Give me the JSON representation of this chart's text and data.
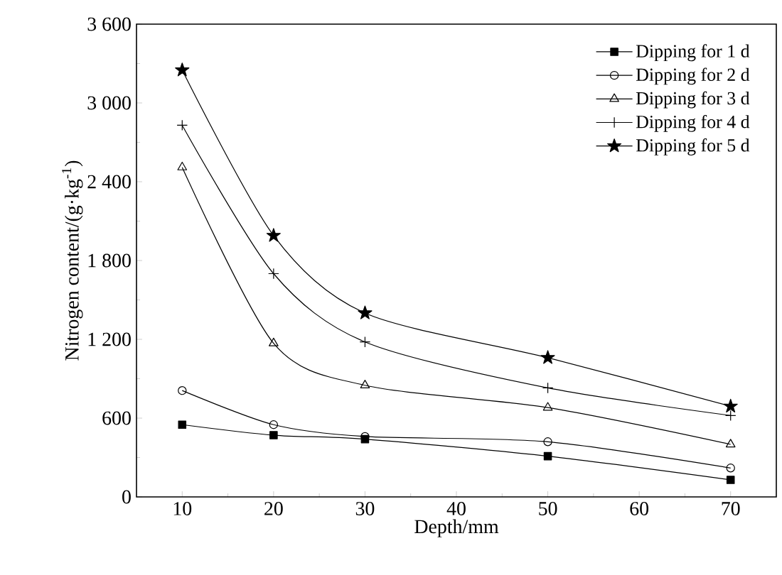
{
  "chart_data": {
    "type": "line",
    "xlabel": "Depth/mm",
    "ylabel": "Nitrogen content/(g·kg$^{-1}$)",
    "x": [
      10,
      20,
      30,
      50,
      70
    ],
    "series": [
      {
        "name": "Dipping for 1 d",
        "color": "#000000",
        "marker": "square",
        "values": [
          550,
          470,
          440,
          310,
          130
        ]
      },
      {
        "name": "Dipping for 2 d",
        "color": "#000000",
        "marker": "circle",
        "values": [
          810,
          550,
          460,
          420,
          220
        ]
      },
      {
        "name": "Dipping for 3 d",
        "color": "#000000",
        "marker": "triangle",
        "values": [
          2510,
          1170,
          850,
          680,
          400
        ]
      },
      {
        "name": "Dipping for 4 d",
        "color": "#000000",
        "marker": "cross",
        "values": [
          2830,
          1700,
          1180,
          830,
          620
        ]
      },
      {
        "name": "Dipping for 5 d",
        "color": "#000000",
        "marker": "star",
        "values": [
          3250,
          1990,
          1400,
          1060,
          690
        ]
      }
    ],
    "xlim": [
      5,
      75
    ],
    "ylim": [
      0,
      3600
    ],
    "xticks": [
      10,
      20,
      30,
      40,
      50,
      60,
      70
    ],
    "yticks": [
      0,
      600,
      {
        "value": 1200,
        "label": "1 200"
      },
      {
        "value": 1800,
        "label": "1 800"
      },
      {
        "value": 2400,
        "label": "2 400"
      },
      {
        "value": 3000,
        "label": "3 000"
      },
      {
        "value": 3600,
        "label": "3 600"
      }
    ],
    "grid": false,
    "legend": "top right",
    "line_style": "solid"
  }
}
